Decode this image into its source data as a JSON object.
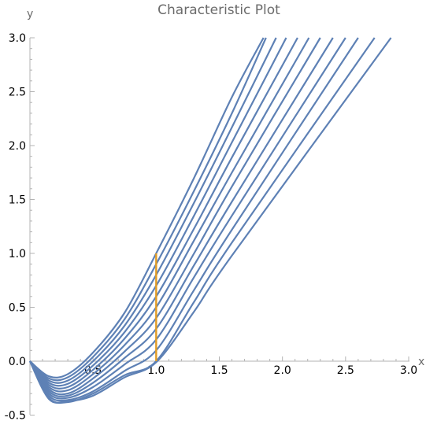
{
  "chart_data": {
    "type": "line",
    "title": "Characteristic Plot",
    "xlabel": "x",
    "ylabel": "y",
    "xlim": [
      0,
      3.0
    ],
    "ylim": [
      -0.5,
      3.0
    ],
    "x_ticks": [
      "0.5",
      "1.0",
      "1.5",
      "2.0",
      "2.5",
      "3.0"
    ],
    "y_ticks": [
      "-0.5",
      "0.0",
      "0.5",
      "1.0",
      "1.5",
      "2.0",
      "2.5",
      "3.0"
    ],
    "x_tick_values": [
      0.5,
      1.0,
      1.5,
      2.0,
      2.5,
      3.0
    ],
    "y_tick_values": [
      -0.5,
      0.0,
      0.5,
      1.0,
      1.5,
      2.0,
      2.5,
      3.0
    ],
    "grid": false,
    "colors": {
      "characteristics": "#5e81b5",
      "vertical_segment": "#e19c24"
    },
    "series": [
      {
        "x": [
          0,
          0.15,
          0.3,
          0.5,
          0.75,
          1.0,
          1.3,
          1.6,
          1.85
        ],
        "y": [
          0,
          -0.14,
          -0.12,
          0.08,
          0.45,
          1.0,
          1.7,
          2.45,
          3.0
        ]
      },
      {
        "x": [
          0,
          0.15,
          0.3,
          0.5,
          0.75,
          1.0,
          1.3,
          1.6,
          1.87
        ],
        "y": [
          0,
          -0.16,
          -0.15,
          0.04,
          0.39,
          0.9,
          1.58,
          2.3,
          3.0
        ]
      },
      {
        "x": [
          0,
          0.15,
          0.3,
          0.5,
          0.75,
          1.0,
          1.3,
          1.6,
          1.95
        ],
        "y": [
          0,
          -0.18,
          -0.18,
          0.0,
          0.33,
          0.8,
          1.47,
          2.17,
          3.0
        ]
      },
      {
        "x": [
          0,
          0.15,
          0.3,
          0.5,
          0.75,
          1.0,
          1.3,
          1.6,
          2.03
        ],
        "y": [
          0,
          -0.2,
          -0.21,
          -0.04,
          0.27,
          0.7,
          1.35,
          2.03,
          3.0
        ]
      },
      {
        "x": [
          0,
          0.15,
          0.3,
          0.5,
          0.75,
          1.0,
          1.3,
          1.6,
          2.12
        ],
        "y": [
          0,
          -0.22,
          -0.24,
          -0.08,
          0.21,
          0.6,
          1.23,
          1.89,
          3.0
        ]
      },
      {
        "x": [
          0,
          0.15,
          0.3,
          0.5,
          0.75,
          1.0,
          1.3,
          1.6,
          2.21
        ],
        "y": [
          0,
          -0.24,
          -0.27,
          -0.12,
          0.15,
          0.5,
          1.12,
          1.75,
          3.0
        ]
      },
      {
        "x": [
          0,
          0.15,
          0.3,
          0.5,
          0.75,
          1.0,
          1.3,
          1.6,
          2.3
        ],
        "y": [
          0,
          -0.26,
          -0.3,
          -0.16,
          0.09,
          0.4,
          1.0,
          1.62,
          3.0
        ]
      },
      {
        "x": [
          0,
          0.15,
          0.3,
          0.5,
          0.75,
          1.0,
          1.3,
          1.6,
          2.4
        ],
        "y": [
          0,
          -0.28,
          -0.32,
          -0.2,
          0.03,
          0.3,
          0.89,
          1.48,
          3.0
        ]
      },
      {
        "x": [
          0,
          0.15,
          0.3,
          0.5,
          0.75,
          1.0,
          1.3,
          1.6,
          2.5
        ],
        "y": [
          0,
          -0.3,
          -0.34,
          -0.24,
          -0.03,
          0.2,
          0.78,
          1.35,
          3.0
        ]
      },
      {
        "x": [
          0,
          0.15,
          0.3,
          0.5,
          0.75,
          1.0,
          1.3,
          1.6,
          2.6
        ],
        "y": [
          0,
          -0.32,
          -0.36,
          -0.28,
          -0.09,
          0.1,
          0.66,
          1.22,
          3.0
        ]
      },
      {
        "x": [
          0,
          0.15,
          0.3,
          0.5,
          0.75,
          1.0,
          1.3,
          1.6,
          2.73
        ],
        "y": [
          0,
          -0.34,
          -0.38,
          -0.3,
          -0.13,
          0.0,
          0.55,
          1.1,
          3.0
        ]
      },
      {
        "x": [
          0,
          0.15,
          0.3,
          0.5,
          0.75,
          1.0,
          1.3,
          1.6,
          2.86
        ],
        "y": [
          0,
          -0.35,
          -0.37,
          -0.32,
          -0.15,
          -0.01,
          0.46,
          0.98,
          3.0
        ]
      }
    ],
    "vertical_segment": {
      "x": 1.0,
      "y": [
        0.0,
        1.0
      ]
    }
  }
}
